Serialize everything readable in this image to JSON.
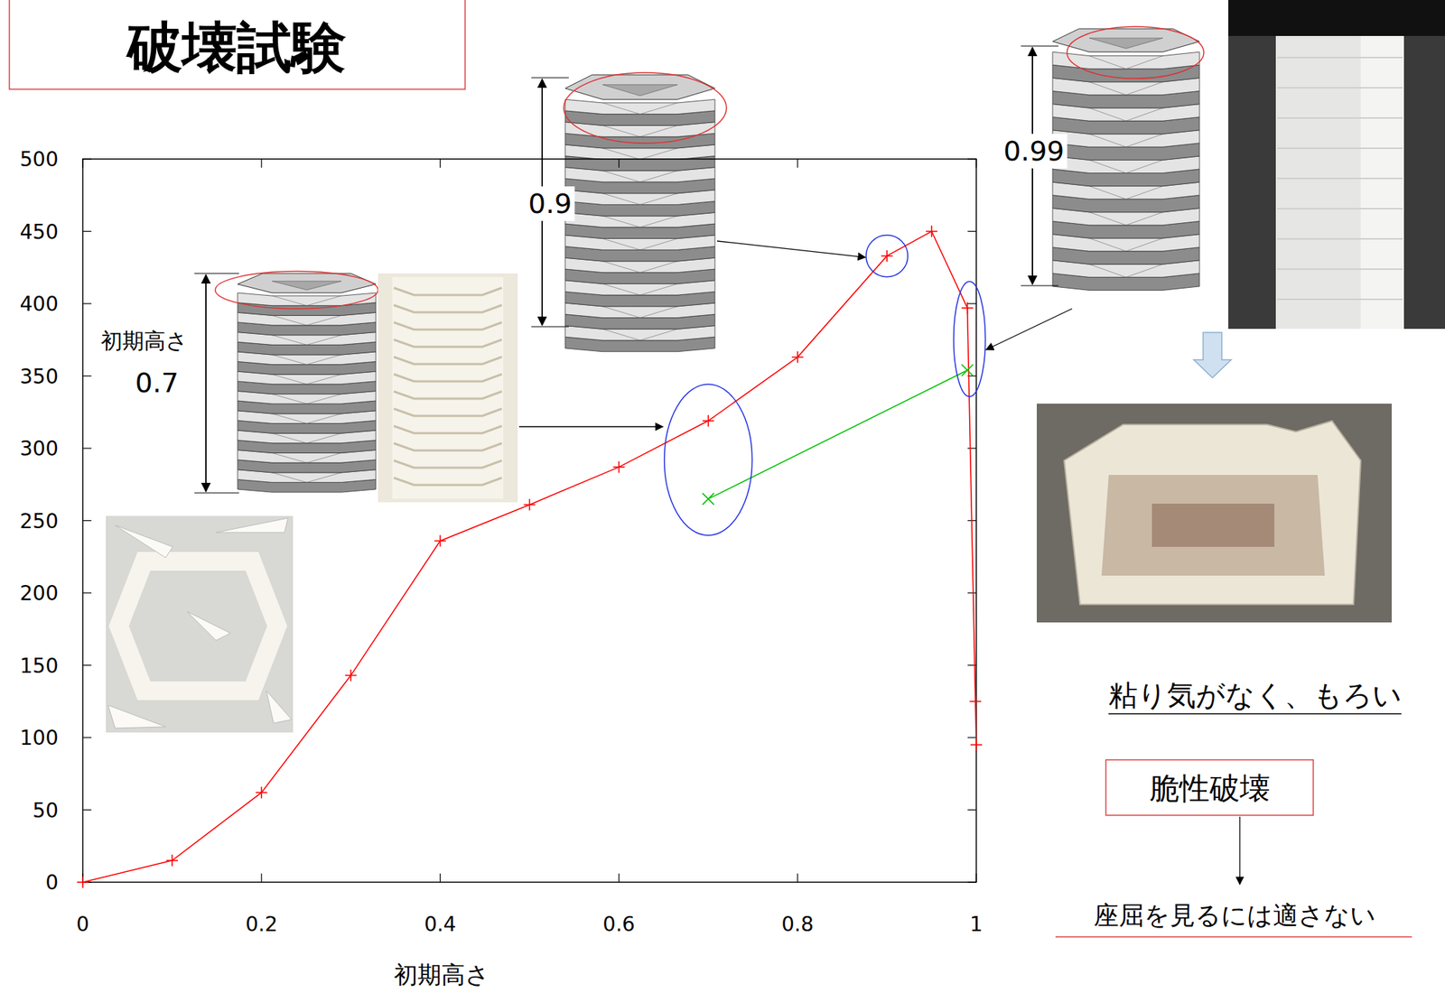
{
  "chart_data": {
    "type": "line",
    "title": "破壊試験",
    "x_label": "初期高さ",
    "xlim": [
      0,
      1
    ],
    "xticks": [
      0,
      0.2,
      0.4,
      0.6,
      0.8,
      1
    ],
    "ylim": [
      0,
      500
    ],
    "yticks": [
      0,
      50,
      100,
      150,
      200,
      250,
      300,
      350,
      400,
      450,
      500
    ],
    "grid": false,
    "series": [
      {
        "color": "#ff0000",
        "marker": "plus",
        "line_style": "solid",
        "x": [
          0,
          0.1,
          0.2,
          0.3,
          0.4,
          0.5,
          0.6,
          0.7,
          0.8,
          0.9,
          0.95,
          0.99,
          0.999,
          1
        ],
        "values": [
          0,
          15,
          62,
          143,
          236,
          261,
          287,
          319,
          363,
          433,
          450,
          397,
          125,
          95
        ]
      },
      {
        "color": "#00c000",
        "marker": "cross",
        "line_style": "solid",
        "x": [
          0.7,
          0.99
        ],
        "values": [
          265,
          354
        ]
      }
    ],
    "annotations": [
      "初期高さ",
      "0.7",
      "0.9",
      "0.99",
      "粘り気がなく、もろい",
      "脆性破壊",
      "座屈を見るには適さない"
    ]
  }
}
